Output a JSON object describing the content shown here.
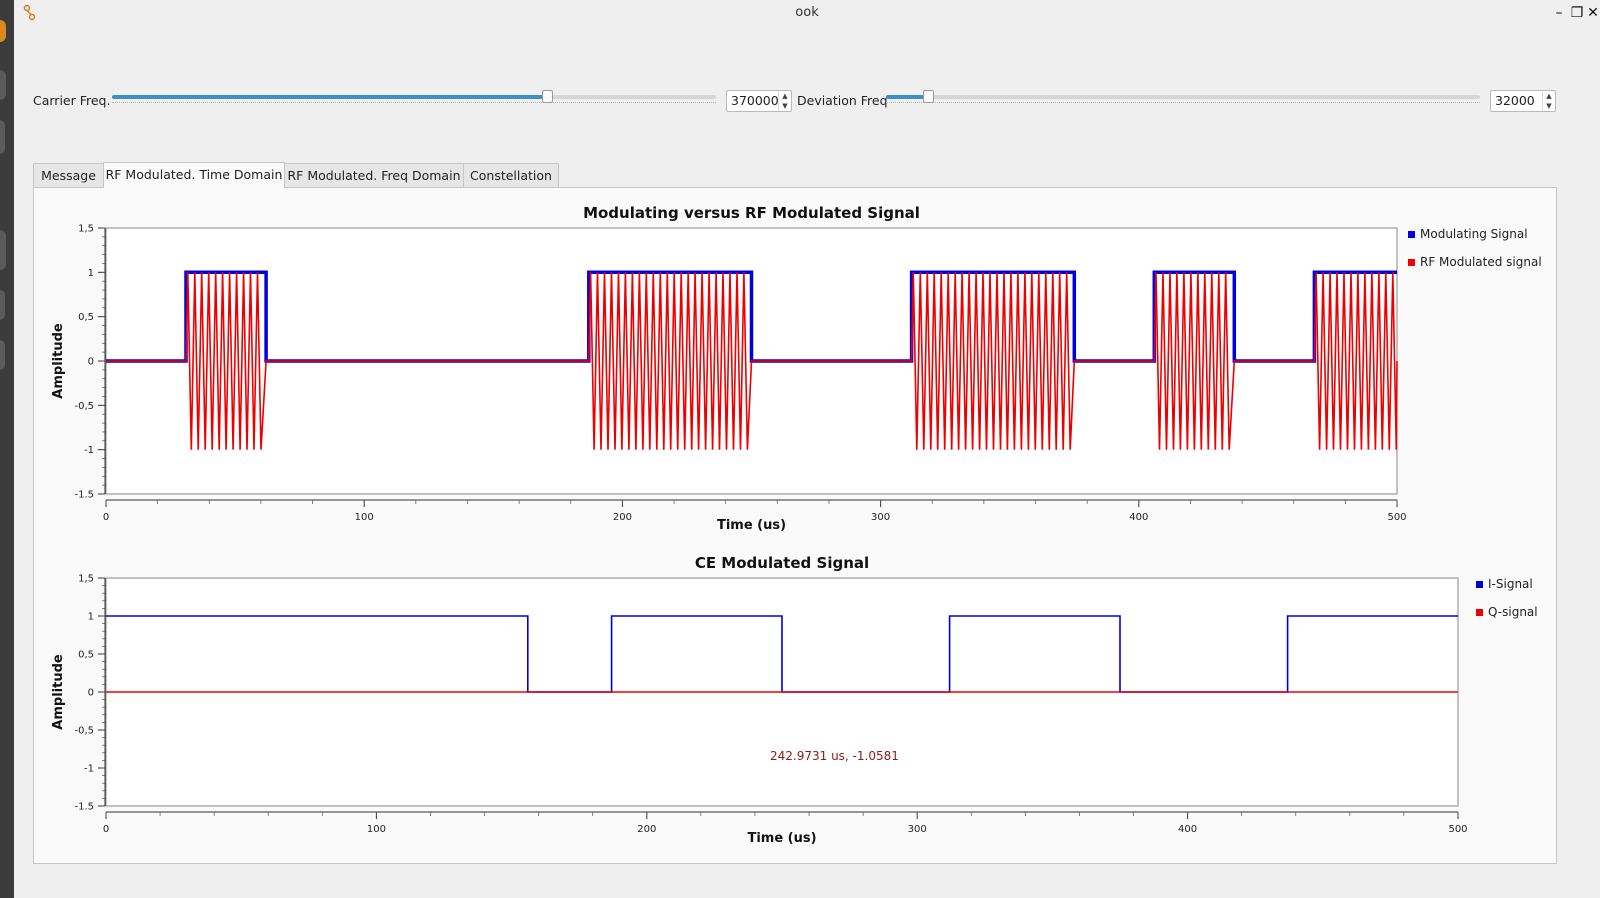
{
  "window": {
    "title": "ook",
    "minimize_glyph": "–",
    "restore_glyph": "❐",
    "close_glyph": "✕",
    "app_icon": "gnuradio-icon"
  },
  "controls": {
    "carrier": {
      "label": "Carrier Freq.",
      "value": "370000",
      "slider_fraction": 0.72
    },
    "deviation": {
      "label": "Deviation Freq",
      "value": "32000",
      "slider_fraction": 0.07
    }
  },
  "tabs": [
    {
      "label": "Message",
      "active": false
    },
    {
      "label": "RF Modulated. Time Domain",
      "active": true
    },
    {
      "label": "RF Modulated. Freq Domain",
      "active": false
    },
    {
      "label": "Constellation",
      "active": false
    }
  ],
  "colors": {
    "blue": "#0000dd",
    "red": "#ee0000",
    "coord": "#8b1a1a"
  },
  "coordinate_readout": "242.9731 us, -1.0581",
  "chart_data": [
    {
      "type": "line",
      "title": "Modulating versus RF Modulated Signal",
      "xlabel": "Time (us)",
      "ylabel": "Amplitude",
      "xlim": [
        0,
        500
      ],
      "ylim": [
        -1.5,
        1.5
      ],
      "x_ticks": [
        "0",
        "100",
        "200",
        "300",
        "400",
        "500"
      ],
      "y_ticks": [
        "1,5",
        "1",
        "0,5",
        "0",
        "-0,5",
        "-1",
        "-1.5"
      ],
      "y_tick_values": [
        1.5,
        1,
        0.5,
        0,
        -0.5,
        -1,
        -1.5
      ],
      "legend_position": "right",
      "series": [
        {
          "name": "Modulating Signal",
          "color": "#0000dd",
          "on_intervals": [
            [
              31,
              62
            ],
            [
              187,
              250
            ],
            [
              312,
              375
            ],
            [
              406,
              437
            ],
            [
              468,
              500
            ]
          ]
        },
        {
          "name": "RF Modulated signal",
          "color": "#ee0000",
          "carrier_period_us": 2.7,
          "on_intervals": [
            [
              31,
              62
            ],
            [
              187,
              250
            ],
            [
              312,
              375
            ],
            [
              406,
              437
            ],
            [
              468,
              500
            ]
          ]
        }
      ]
    },
    {
      "type": "line",
      "title": "CE Modulated Signal",
      "xlabel": "Time (us)",
      "ylabel": "Amplitude",
      "xlim": [
        0,
        500
      ],
      "ylim": [
        -1.5,
        1.5
      ],
      "x_ticks": [
        "0",
        "100",
        "200",
        "300",
        "400",
        "500"
      ],
      "y_ticks": [
        "1,5",
        "1",
        "0,5",
        "0",
        "-0,5",
        "-1",
        "-1.5"
      ],
      "y_tick_values": [
        1.5,
        1,
        0.5,
        0,
        -0.5,
        -1,
        -1.5
      ],
      "legend_position": "right",
      "series": [
        {
          "name": "I-Signal",
          "color": "#0000dd",
          "on_intervals": [
            [
              0,
              156
            ],
            [
              187,
              250
            ],
            [
              312,
              375
            ],
            [
              437,
              500
            ]
          ]
        },
        {
          "name": "Q-signal",
          "color": "#ee0000",
          "constant": 0
        }
      ]
    }
  ]
}
